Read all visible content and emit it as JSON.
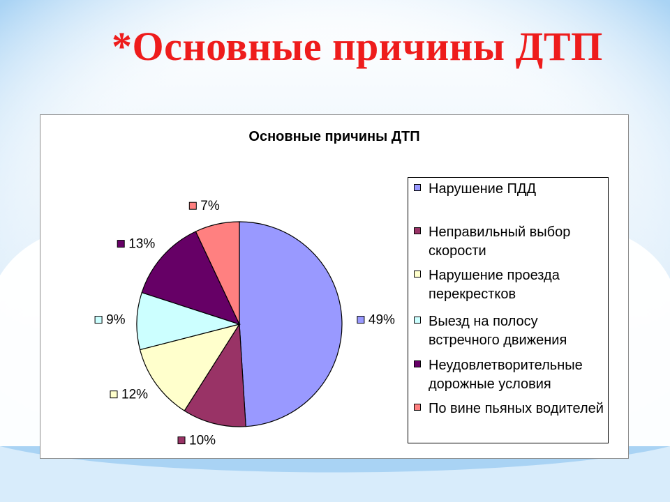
{
  "slide": {
    "title": "*Основные причины ДТП"
  },
  "colors": {
    "title": "#ee1c1c",
    "background_accent": "#a9d3f4",
    "slice_border": "#000000"
  },
  "chart_data": {
    "type": "pie",
    "title": "Основные причины ДТП",
    "legend_position": "right",
    "slices": [
      {
        "label": "Нарушение ПДД",
        "value": 49,
        "display": "49%",
        "color": "#9999ff"
      },
      {
        "label": "Неправильный выбор скорости",
        "value": 10,
        "display": "10%",
        "color": "#993366"
      },
      {
        "label": "Нарушение проезда перекрестков",
        "value": 12,
        "display": "12%",
        "color": "#ffffcc"
      },
      {
        "label": "Выезд на полосу встречного движения",
        "value": 9,
        "display": "9%",
        "color": "#ccffff"
      },
      {
        "label": "Неудовлетворительные дорожные условия",
        "value": 13,
        "display": "13%",
        "color": "#660066"
      },
      {
        "label": "По вине пьяных водителей",
        "value": 7,
        "display": "7%",
        "color": "#ff8080"
      }
    ]
  }
}
